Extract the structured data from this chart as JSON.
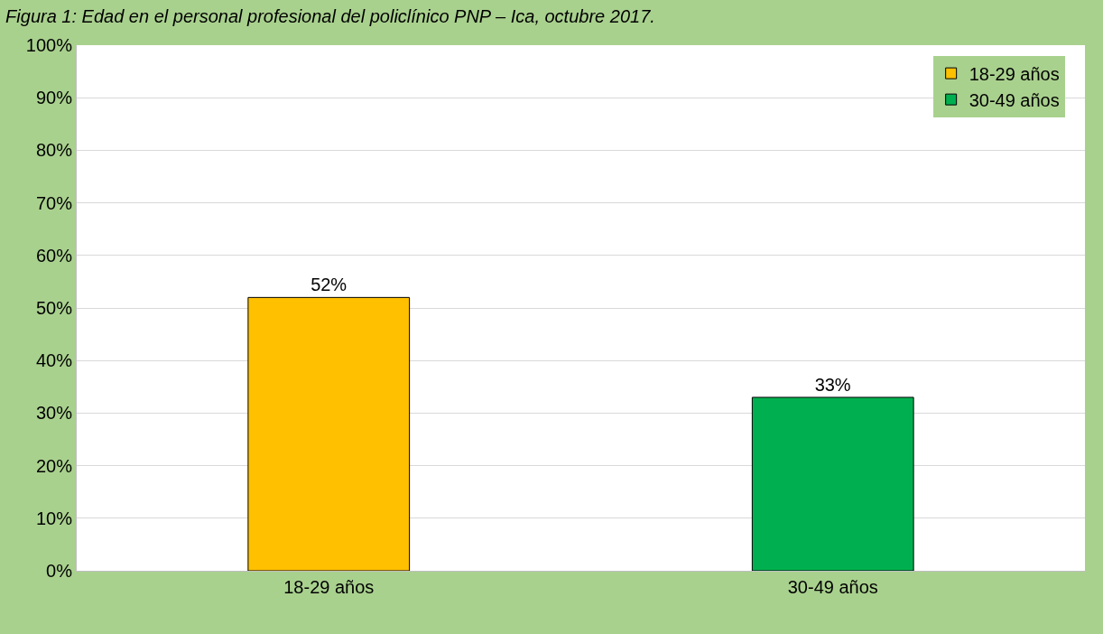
{
  "chart_data": {
    "type": "bar",
    "title": "Figura 1: Edad en el personal profesional del policlínico PNP – Ica, octubre 2017.",
    "categories": [
      "18-29 años",
      "30-49 años"
    ],
    "series": [
      {
        "name": "18-29 años",
        "color": "#ffc000",
        "values": [
          52,
          null
        ]
      },
      {
        "name": "30-49 años",
        "color": "#00b050",
        "values": [
          null,
          33
        ]
      }
    ],
    "ylim": [
      0,
      100
    ],
    "yticks": [
      {
        "value": 0,
        "label": "0%"
      },
      {
        "value": 10,
        "label": "10%"
      },
      {
        "value": 20,
        "label": "20%"
      },
      {
        "value": 30,
        "label": "30%"
      },
      {
        "value": 40,
        "label": "40%"
      },
      {
        "value": 50,
        "label": "50%"
      },
      {
        "value": 60,
        "label": "60%"
      },
      {
        "value": 70,
        "label": "70%"
      },
      {
        "value": 80,
        "label": "80%"
      },
      {
        "value": 90,
        "label": "90%"
      },
      {
        "value": 100,
        "label": "100%"
      }
    ],
    "value_labels": [
      "52%",
      "33%"
    ],
    "grid": "y",
    "legend": "top right"
  }
}
